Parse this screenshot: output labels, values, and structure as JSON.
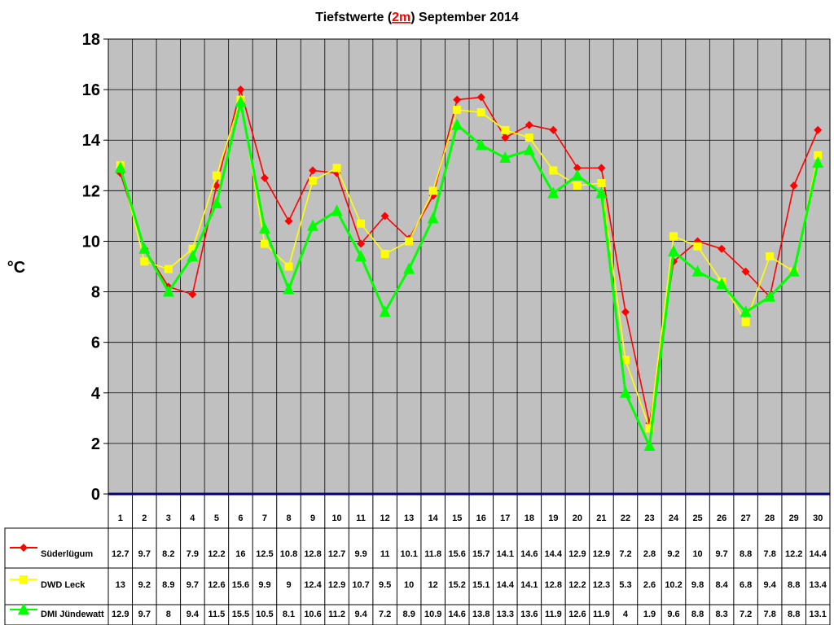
{
  "chart_data": {
    "type": "line",
    "title_parts": [
      "Tiefstwerte (",
      "2m",
      ") September 2014"
    ],
    "ylabel": "°C",
    "ylim": [
      0,
      18
    ],
    "yticks": [
      "0",
      "2",
      "4",
      "6",
      "8",
      "10",
      "12",
      "14",
      "16",
      "18"
    ],
    "grid": true,
    "plot_background": "#c0c0c0",
    "legend_placement": "data-table",
    "categories": [
      "1",
      "2",
      "3",
      "4",
      "5",
      "6",
      "7",
      "8",
      "9",
      "10",
      "11",
      "12",
      "13",
      "14",
      "15",
      "16",
      "17",
      "18",
      "19",
      "20",
      "21",
      "22",
      "23",
      "24",
      "25",
      "26",
      "27",
      "28",
      "29",
      "30"
    ],
    "series": [
      {
        "name": "Süderlügum",
        "color": "#ff0000",
        "marker": "diamond",
        "labels": [
          "12.7",
          "9.7",
          "8.2",
          "7.9",
          "12.2",
          "16",
          "12.5",
          "10.8",
          "12.8",
          "12.7",
          "9.9",
          "11",
          "10.1",
          "11.8",
          "15.6",
          "15.7",
          "14.1",
          "14.6",
          "14.4",
          "12.9",
          "12.9",
          "7.2",
          "2.8",
          "9.2",
          "10",
          "9.7",
          "8.8",
          "7.8",
          "12.2",
          "14.4"
        ],
        "values": [
          12.7,
          9.7,
          8.2,
          7.9,
          12.2,
          16,
          12.5,
          10.8,
          12.8,
          12.7,
          9.9,
          11,
          10.1,
          11.8,
          15.6,
          15.7,
          14.1,
          14.6,
          14.4,
          12.9,
          12.9,
          7.2,
          2.8,
          9.2,
          10,
          9.7,
          8.8,
          7.8,
          12.2,
          14.4
        ]
      },
      {
        "name": "DWD Leck",
        "color": "#ffff00",
        "marker": "square",
        "labels": [
          "13",
          "9.2",
          "8.9",
          "9.7",
          "12.6",
          "15.6",
          "9.9",
          "9",
          "12.4",
          "12.9",
          "10.7",
          "9.5",
          "10",
          "12",
          "15.2",
          "15.1",
          "14.4",
          "14.1",
          "12.8",
          "12.2",
          "12.3",
          "5.3",
          "2.6",
          "10.2",
          "9.8",
          "8.4",
          "6.8",
          "9.4",
          "8.8",
          "13.4"
        ],
        "values": [
          13,
          9.2,
          8.9,
          9.7,
          12.6,
          15.6,
          9.9,
          9,
          12.4,
          12.9,
          10.7,
          9.5,
          10,
          12,
          15.2,
          15.1,
          14.4,
          14.1,
          12.8,
          12.2,
          12.3,
          5.3,
          2.6,
          10.2,
          9.8,
          8.4,
          6.8,
          9.4,
          8.8,
          13.4
        ]
      },
      {
        "name": "DMI Jündewatt",
        "color": "#00ff00",
        "marker": "triangle",
        "labels": [
          "12.9",
          "9.7",
          "8",
          "9.4",
          "11.5",
          "15.5",
          "10.5",
          "8.1",
          "10.6",
          "11.2",
          "9.4",
          "7.2",
          "8.9",
          "10.9",
          "14.6",
          "13.8",
          "13.3",
          "13.6",
          "11.9",
          "12.6",
          "11.9",
          "4",
          "1.9",
          "9.6",
          "8.8",
          "8.3",
          "7.2",
          "7.8",
          "8.8",
          "13.1"
        ],
        "values": [
          12.9,
          9.7,
          8,
          9.4,
          11.5,
          15.5,
          10.5,
          8.1,
          10.6,
          11.2,
          9.4,
          7.2,
          8.9,
          10.9,
          14.6,
          13.8,
          13.3,
          13.6,
          11.9,
          12.6,
          11.9,
          4,
          1.9,
          9.6,
          8.8,
          8.3,
          7.2,
          7.8,
          8.8,
          13.1
        ]
      }
    ]
  }
}
